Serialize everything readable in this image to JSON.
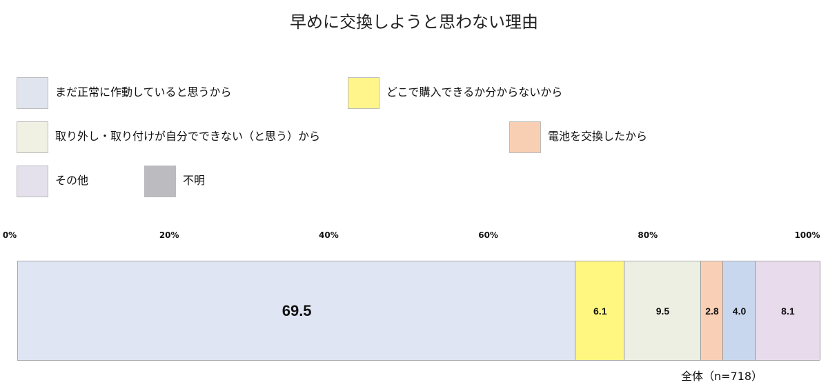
{
  "chart_data": {
    "type": "bar",
    "orientation": "horizontal-stacked-100",
    "title": "早めに交換しようと思わない理由",
    "categories": [
      "全体（n=718）"
    ],
    "category_label": "全体（n=718）",
    "xlim": [
      0,
      100
    ],
    "xticks": [
      "0%",
      "20%",
      "40%",
      "60%",
      "80%",
      "100%"
    ],
    "grid": false,
    "legend_position": "top",
    "legend": [
      {
        "label": "まだ正常に作動していると思うから",
        "color": "#dfe4ee"
      },
      {
        "label": "どこで購入できるか分からないから",
        "color": "#fff58a"
      },
      {
        "label": "取り外し・取り付けが自分でできない（と思う）から",
        "color": "#f0f0e3"
      },
      {
        "label": "電池を交換したから",
        "color": "#f9cfb4"
      },
      {
        "label": "その他",
        "color": "#e4e0ec"
      },
      {
        "label": "不明",
        "color": "#bcbbc0"
      }
    ],
    "series": [
      {
        "value": 69.5,
        "label": "69.5",
        "color": "#dfe5f3"
      },
      {
        "value": 6.1,
        "label": "6.1",
        "color": "#fff780"
      },
      {
        "value": 9.5,
        "label": "9.5",
        "color": "#eeefe3"
      },
      {
        "value": 2.8,
        "label": "2.8",
        "color": "#f9d0b6"
      },
      {
        "value": 4.0,
        "label": "4.0",
        "color": "#c8d7ee"
      },
      {
        "value": 8.1,
        "label": "8.1",
        "color": "#e8dcec"
      }
    ]
  }
}
